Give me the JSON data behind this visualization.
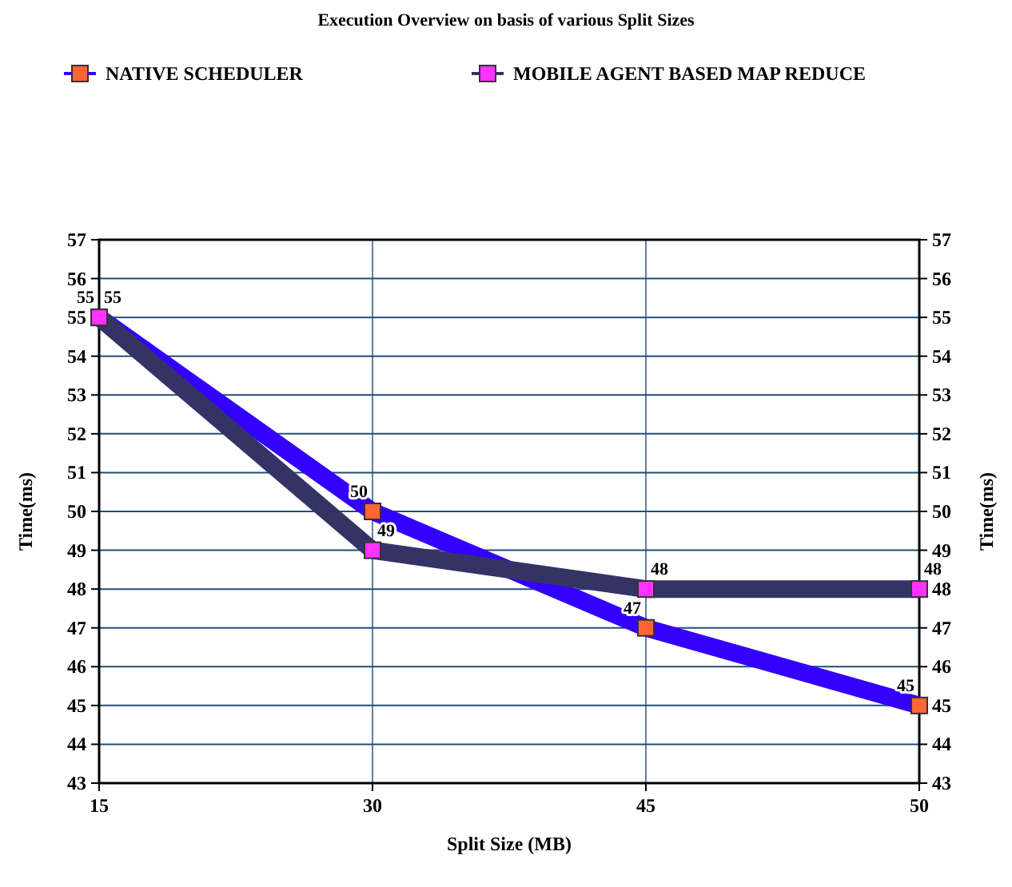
{
  "chart_data": {
    "type": "line",
    "title": "Execution Overview on basis of various Split Sizes",
    "xlabel": "Split Size (MB)",
    "ylabel": "Time(ms)",
    "y2label": "Time(ms)",
    "categories": [
      "15",
      "30",
      "45",
      "50"
    ],
    "series": [
      {
        "name": "NATIVE SCHEDULER",
        "color": "#3300ff",
        "colors": [
          "#ff6633",
          "#ff6633",
          "#ff6633",
          "#ff6633"
        ],
        "values": [
          55,
          50,
          47,
          45
        ]
      },
      {
        "name": "MOBILE AGENT BASED MAP REDUCE",
        "color": "#333366",
        "colors": [
          "#ff33ff",
          "#ff33ff",
          "#ff33ff",
          "#ff33ff"
        ],
        "values": [
          55,
          49,
          48,
          48
        ]
      }
    ],
    "ylim": [
      43,
      57
    ],
    "yticks": [
      43,
      44,
      45,
      46,
      47,
      48,
      49,
      50,
      51,
      52,
      53,
      54,
      55,
      56,
      57
    ],
    "y2lim": [
      43,
      57
    ],
    "y2ticks": [
      43,
      44,
      45,
      46,
      47,
      48,
      49,
      50,
      51,
      52,
      53,
      54,
      55,
      56,
      57
    ],
    "grid": true,
    "legend": "top",
    "marker": "square",
    "line_style": "solid",
    "data_labels": true
  }
}
